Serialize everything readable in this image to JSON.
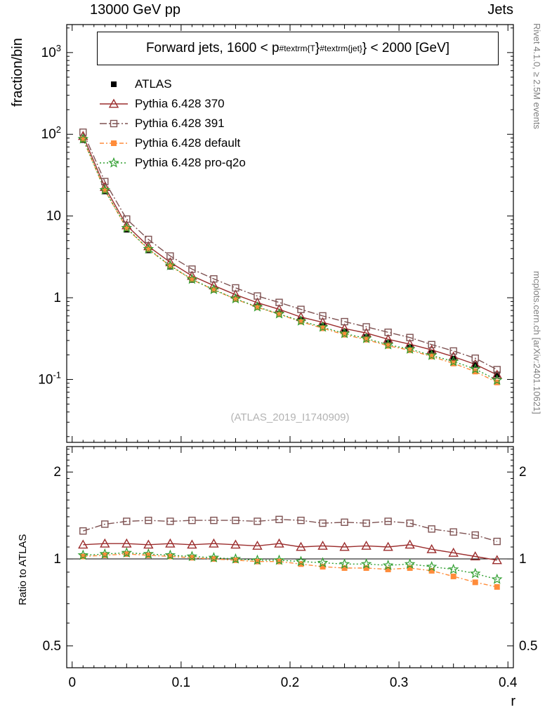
{
  "header": {
    "left": "13000 GeV pp",
    "right": "Jets"
  },
  "title": {
    "prefix": "Forward jets, 1600 < p",
    "sub": "#textrm{T",
    "brace": "}",
    "sup": "#textrm{jet}",
    "suffix": "} < 2000 [GeV]"
  },
  "watermark": "(ATLAS_2019_I1740909)",
  "side_labels": {
    "right_top": "Rivet 4.1.0, ≥ 2.5M events",
    "right_bottom": "mcplots.cern.ch [arXiv:2401.10621]"
  },
  "chart_data": [
    {
      "type": "line",
      "panel": "main",
      "title": "Forward jets, 1600 < p_{#textrm{T}}^{#textrm{jet}} < 2000 [GeV]",
      "ylabel": "fraction/bin",
      "yscale": "log",
      "ylim": [
        0.017,
        2200
      ],
      "xlim": [
        -0.005,
        0.405
      ],
      "grid": false,
      "legend_position": "top-left-inside",
      "x": [
        0.01,
        0.03,
        0.05,
        0.07,
        0.09,
        0.11,
        0.13,
        0.15,
        0.17,
        0.19,
        0.21,
        0.23,
        0.25,
        0.27,
        0.29,
        0.31,
        0.33,
        0.35,
        0.37,
        0.39
      ],
      "y_ticks": [
        {
          "v": 1000,
          "t": "10",
          "sup": "3"
        },
        {
          "v": 100,
          "t": "10",
          "sup": "2"
        },
        {
          "v": 10,
          "t": "10"
        },
        {
          "v": 1,
          "t": "1"
        },
        {
          "v": 0.1,
          "t": "10",
          "sup": "-1"
        }
      ],
      "series": [
        {
          "name": "ATLAS",
          "color": "#000000",
          "marker": "square-filled",
          "line": "none",
          "values": [
            85,
            20,
            6.8,
            3.8,
            2.4,
            1.65,
            1.25,
            0.97,
            0.78,
            0.64,
            0.53,
            0.45,
            0.38,
            0.33,
            0.28,
            0.245,
            0.21,
            0.18,
            0.15,
            0.115
          ]
        },
        {
          "name": "Pythia 6.428 370",
          "color": "#9b2d2d",
          "marker": "triangle-open",
          "line": "solid",
          "values": [
            95.2,
            22.6,
            7.68,
            4.26,
            2.71,
            1.85,
            1.41,
            1.09,
            0.87,
            0.72,
            0.58,
            0.5,
            0.42,
            0.37,
            0.31,
            0.27,
            0.23,
            0.19,
            0.153,
            0.114
          ]
        },
        {
          "name": "Pythia 6.428 391",
          "color": "#7e5252",
          "marker": "square-open",
          "line": "dashdot",
          "values": [
            106,
            26.4,
            9.18,
            5.17,
            3.24,
            2.24,
            1.7,
            1.32,
            1.05,
            0.877,
            0.72,
            0.6,
            0.51,
            0.44,
            0.378,
            0.326,
            0.267,
            0.223,
            0.182,
            0.132
          ]
        },
        {
          "name": "Pythia 6.428 default",
          "color": "#ff8c3a",
          "marker": "square-filled",
          "line": "dashdot2",
          "values": [
            86.7,
            20.6,
            7.07,
            3.91,
            2.45,
            1.67,
            1.25,
            0.96,
            0.764,
            0.627,
            0.509,
            0.423,
            0.353,
            0.307,
            0.258,
            0.228,
            0.191,
            0.157,
            0.125,
            0.092
          ]
        },
        {
          "name": "Pythia 6.428 pro-q2o",
          "color": "#2f9e2f",
          "marker": "star-open",
          "line": "dotted",
          "values": [
            87.6,
            20.8,
            7.14,
            3.95,
            2.47,
            1.68,
            1.26,
            0.97,
            0.772,
            0.634,
            0.519,
            0.437,
            0.365,
            0.317,
            0.266,
            0.235,
            0.197,
            0.166,
            0.134,
            0.098
          ]
        }
      ]
    },
    {
      "type": "line",
      "panel": "ratio",
      "ylabel": "Ratio to ATLAS",
      "xlabel": "r",
      "yscale": "log",
      "ylim": [
        0.42,
        2.45
      ],
      "xlim": [
        -0.005,
        0.405
      ],
      "reference_line": 1.0,
      "x_ticks": [
        {
          "v": 0,
          "t": "0"
        },
        {
          "v": 0.1,
          "t": "0.1"
        },
        {
          "v": 0.2,
          "t": "0.2"
        },
        {
          "v": 0.3,
          "t": "0.3"
        },
        {
          "v": 0.4,
          "t": "0.4"
        }
      ],
      "y_ticks": [
        {
          "v": 2,
          "t": "2"
        },
        {
          "v": 1,
          "t": "1"
        },
        {
          "v": 0.5,
          "t": "0.5"
        }
      ],
      "x": [
        0.01,
        0.03,
        0.05,
        0.07,
        0.09,
        0.11,
        0.13,
        0.15,
        0.17,
        0.19,
        0.21,
        0.23,
        0.25,
        0.27,
        0.29,
        0.31,
        0.33,
        0.35,
        0.37,
        0.39
      ],
      "series": [
        {
          "name": "Pythia 6.428 370",
          "color": "#9b2d2d",
          "marker": "triangle-open",
          "line": "solid",
          "values": [
            1.12,
            1.13,
            1.13,
            1.12,
            1.13,
            1.12,
            1.13,
            1.12,
            1.11,
            1.13,
            1.1,
            1.11,
            1.1,
            1.11,
            1.1,
            1.12,
            1.08,
            1.05,
            1.02,
            0.99
          ]
        },
        {
          "name": "Pythia 6.428 391",
          "color": "#7e5252",
          "marker": "square-open",
          "line": "dashdot",
          "values": [
            1.25,
            1.32,
            1.35,
            1.36,
            1.35,
            1.36,
            1.36,
            1.36,
            1.35,
            1.37,
            1.36,
            1.33,
            1.34,
            1.33,
            1.35,
            1.33,
            1.27,
            1.24,
            1.21,
            1.15
          ]
        },
        {
          "name": "Pythia 6.428 default",
          "color": "#ff8c3a",
          "marker": "square-filled",
          "line": "dashdot2",
          "values": [
            1.02,
            1.03,
            1.04,
            1.03,
            1.02,
            1.01,
            1.0,
            0.99,
            0.98,
            0.98,
            0.96,
            0.94,
            0.93,
            0.93,
            0.92,
            0.93,
            0.91,
            0.87,
            0.83,
            0.8
          ]
        },
        {
          "name": "Pythia 6.428 pro-q2o",
          "color": "#2f9e2f",
          "marker": "star-open",
          "line": "dotted",
          "values": [
            1.03,
            1.04,
            1.05,
            1.04,
            1.03,
            1.02,
            1.01,
            1.0,
            0.99,
            0.99,
            0.98,
            0.97,
            0.96,
            0.96,
            0.95,
            0.96,
            0.94,
            0.92,
            0.89,
            0.85
          ]
        }
      ]
    }
  ]
}
